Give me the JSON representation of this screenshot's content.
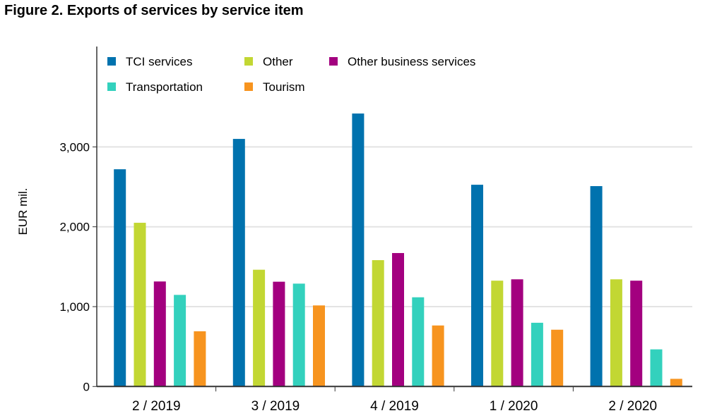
{
  "title": "Figure 2. Exports of services by service item",
  "chart_data": {
    "type": "bar",
    "title": "Figure 2. Exports of services by service item",
    "ylabel": "EUR mil.",
    "xlabel": "",
    "ylim": [
      0,
      3600
    ],
    "yticks": [
      0,
      1000,
      2000,
      3000
    ],
    "ytick_labels": [
      "0",
      "1,000",
      "2,000",
      "3,000"
    ],
    "grid": true,
    "legend_placement": "top-left",
    "categories": [
      "2 / 2019",
      "3 / 2019",
      "4 / 2019",
      "1 / 2020",
      "2 / 2020"
    ],
    "series": [
      {
        "name": "TCI services",
        "color": "#0072ae",
        "values": [
          2720,
          3100,
          3418,
          2526,
          2509
        ]
      },
      {
        "name": "Other",
        "color": "#c2d733",
        "values": [
          2050,
          1462,
          1582,
          1325,
          1342
        ]
      },
      {
        "name": "Other business services",
        "color": "#a3007f",
        "values": [
          1315,
          1312,
          1671,
          1342,
          1325
        ]
      },
      {
        "name": "Transportation",
        "color": "#33d1bd",
        "values": [
          1147,
          1288,
          1117,
          798,
          465
        ]
      },
      {
        "name": "Tourism",
        "color": "#f7941f",
        "values": [
          691,
          1015,
          764,
          711,
          96
        ]
      }
    ]
  }
}
